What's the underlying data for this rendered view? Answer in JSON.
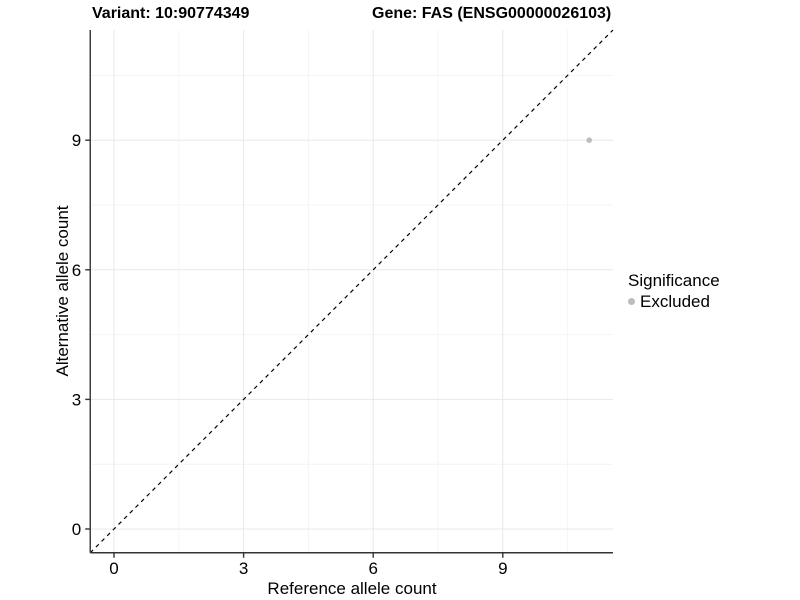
{
  "chart_data": {
    "type": "scatter",
    "title_left": "Variant: 10:90774349",
    "title_right": "Gene: FAS (ENSG00000026103)",
    "xlabel": "Reference allele count",
    "ylabel": "Alternative allele count",
    "xlim": [
      -0.55,
      11.55
    ],
    "ylim": [
      -0.55,
      11.55
    ],
    "x_ticks": [
      0,
      3,
      6,
      9
    ],
    "y_ticks": [
      0,
      3,
      6,
      9
    ],
    "x_minor_ticks": [
      1.5,
      4.5,
      7.5,
      10.5
    ],
    "y_minor_ticks": [
      1.5,
      4.5,
      7.5,
      10.5
    ],
    "grid": true,
    "points": [
      {
        "x": 11,
        "y": 9,
        "series": "Excluded"
      }
    ],
    "abline": {
      "slope": 1,
      "intercept": 0,
      "style": "dashed",
      "color": "#000000"
    },
    "legend": {
      "position": "right",
      "title": "Significance",
      "items": [
        {
          "label": "Excluded",
          "color": "#bdbdbd"
        }
      ]
    },
    "colors": {
      "point": "#bdbdbd",
      "axis_line": "#333333",
      "tick_mark": "#333333",
      "tick_label": "#000000",
      "grid_major": "#e8e8e8",
      "grid_minor": "#f4f4f4",
      "background": "#ffffff"
    }
  }
}
